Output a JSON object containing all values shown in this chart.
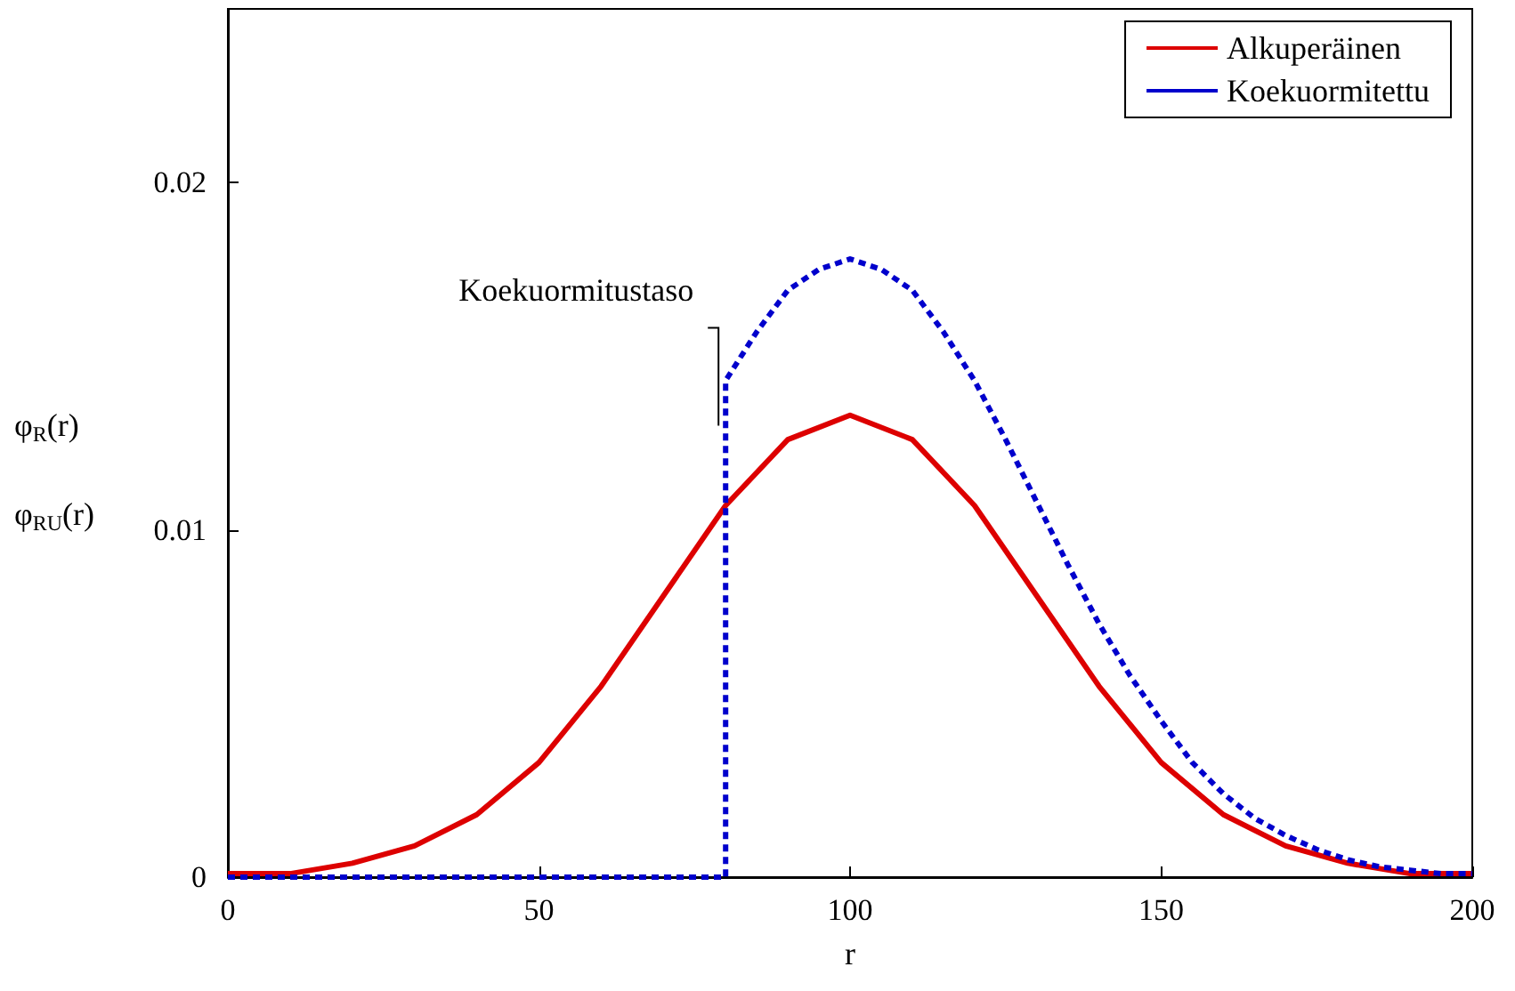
{
  "chart_data": {
    "type": "line",
    "xlabel": "r",
    "ylabel": "φ$_{R}$(r)\nφ$_{RU}$(r)",
    "xlim": [
      0,
      200
    ],
    "xticks": [
      0,
      50,
      100,
      150,
      200
    ],
    "ylim": [
      0,
      0.025
    ],
    "yticks": [
      0,
      0.01,
      0.02
    ],
    "grid": false,
    "legend": "top right",
    "marker": "none",
    "annotations": [
      {
        "text": "Koekuormitustaso",
        "x": 80,
        "y": 0.013
      }
    ],
    "series": [
      {
        "name": "Alkuperäinen",
        "color": "#dd0000",
        "line_style": "solid",
        "x": [
          0,
          10,
          20,
          30,
          40,
          50,
          60,
          70,
          80,
          90,
          100,
          110,
          120,
          130,
          140,
          150,
          160,
          170,
          180,
          190,
          200
        ],
        "values": [
          0.0001,
          0.0001,
          0.0004,
          0.0009,
          0.0018,
          0.0033,
          0.0055,
          0.0081,
          0.0107,
          0.0126,
          0.0133,
          0.0126,
          0.0107,
          0.0081,
          0.0055,
          0.0033,
          0.0018,
          0.0009,
          0.0004,
          0.0001,
          0.0001
        ]
      },
      {
        "name": "Koekuormitettu",
        "color": "#0000cc",
        "line_style": "dashed",
        "x": [
          0,
          80,
          80,
          85,
          90,
          95,
          100,
          105,
          110,
          115,
          120,
          125,
          130,
          135,
          140,
          145,
          150,
          155,
          160,
          165,
          170,
          175,
          180,
          185,
          190,
          195,
          200
        ],
        "values": [
          0,
          0,
          0.0143,
          0.0157,
          0.0169,
          0.0175,
          0.0178,
          0.0175,
          0.0169,
          0.0157,
          0.0143,
          0.0126,
          0.0108,
          0.009,
          0.0073,
          0.0058,
          0.0045,
          0.0033,
          0.0024,
          0.0017,
          0.0012,
          0.0008,
          0.0005,
          0.0003,
          0.0002,
          0.0001,
          0.0001
        ]
      }
    ]
  }
}
